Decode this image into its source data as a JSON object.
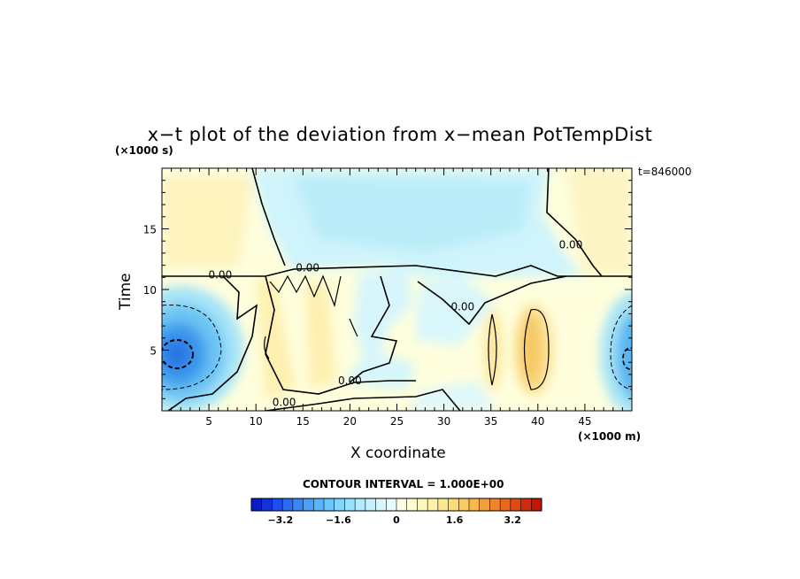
{
  "chart_data": {
    "type": "heatmap",
    "title": "x−t plot of the deviation from x−mean PotTempDist",
    "xlabel": "X coordinate",
    "x_units": "(×1000 m)",
    "ylabel": "Time",
    "y_units": "(×1000 s)",
    "timestamp": "t=846000",
    "contour_note": "CONTOUR INTERVAL = 1.000E+00",
    "xlim": [
      0,
      50
    ],
    "ylim": [
      0,
      20
    ],
    "xticks": [
      5,
      10,
      15,
      20,
      25,
      30,
      35,
      40,
      45
    ],
    "yticks": [
      5,
      10,
      15
    ],
    "contour_labels": [
      {
        "text": "0.00",
        "x": 6.2,
        "y": 10.9
      },
      {
        "text": "0.00",
        "x": 15.5,
        "y": 11.5
      },
      {
        "text": "0.00",
        "x": 32,
        "y": 8.3
      },
      {
        "text": "0.00",
        "x": 43.5,
        "y": 13.4
      },
      {
        "text": "0.00",
        "x": 20,
        "y": 2.2
      },
      {
        "text": "0.00",
        "x": 13,
        "y": 0.4
      }
    ],
    "colorbar": {
      "min": -4,
      "max": 4,
      "step": 0.4,
      "tick_values": [
        -3.2,
        -1.6,
        0,
        1.6,
        3.2
      ],
      "tick_labels": [
        "−3.2",
        "−1.6",
        "0",
        "1.6",
        "3.2"
      ],
      "colors": [
        "#0a1ec8",
        "#1432dc",
        "#1e4ef0",
        "#2a6cf5",
        "#3a86f8",
        "#48a0fa",
        "#58b4fc",
        "#6ac6fd",
        "#80d6fe",
        "#98e2fe",
        "#b0ecfe",
        "#c6f2fe",
        "#d8f8fe",
        "#e8fcfe",
        "#fefee6",
        "#fefcd0",
        "#fef8bc",
        "#fdf2a6",
        "#fce890",
        "#fbdc7a",
        "#f9cc62",
        "#f7b84c",
        "#f4a03a",
        "#f0842a",
        "#ea661e",
        "#e24814",
        "#d42a0c",
        "#c41606"
      ]
    }
  }
}
